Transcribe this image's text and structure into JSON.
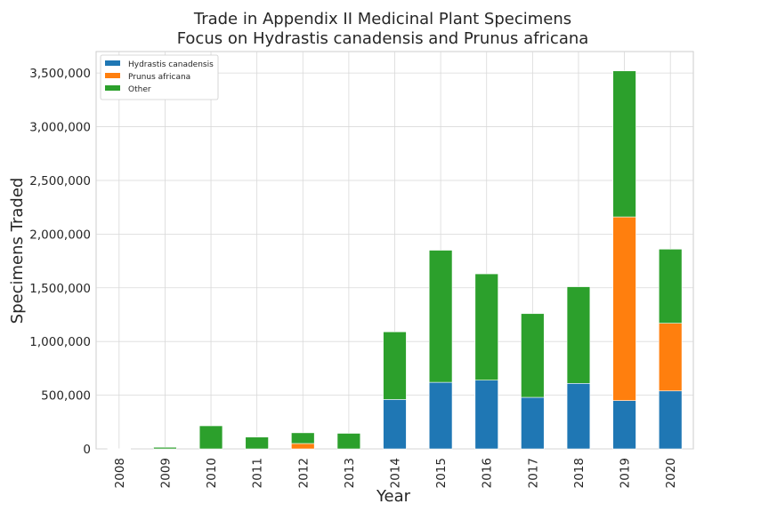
{
  "chart_data": {
    "type": "bar",
    "stacked": true,
    "title": "Trade in Appendix II Medicinal Plant Specimens",
    "subtitle": "Focus on Hydrastis canadensis and Prunus africana",
    "xlabel": "Year",
    "ylabel": "Specimens Traded",
    "ylim": [
      0,
      3700000
    ],
    "yticks": [
      0,
      500000,
      1000000,
      1500000,
      2000000,
      2500000,
      3000000,
      3500000
    ],
    "ytick_labels": [
      "0",
      "500,000",
      "1,000,000",
      "1,500,000",
      "2,000,000",
      "2,500,000",
      "3,000,000",
      "3,500,000"
    ],
    "grid": true,
    "legend_position": "top-left",
    "categories": [
      "2008",
      "2009",
      "2010",
      "2011",
      "2012",
      "2013",
      "2014",
      "2015",
      "2016",
      "2017",
      "2018",
      "2019",
      "2020"
    ],
    "series": [
      {
        "name": "Hydrastis canadensis",
        "color": "#1f77b4",
        "values": [
          0,
          0,
          0,
          0,
          0,
          0,
          460000,
          620000,
          640000,
          480000,
          610000,
          450000,
          540000
        ]
      },
      {
        "name": "Prunus africana",
        "color": "#ff7f0e",
        "values": [
          0,
          0,
          0,
          0,
          50000,
          0,
          0,
          0,
          0,
          0,
          0,
          1710000,
          630000
        ]
      },
      {
        "name": "Other",
        "color": "#2ca02c",
        "values": [
          2000,
          15000,
          215000,
          110000,
          100000,
          145000,
          630000,
          1230000,
          990000,
          780000,
          900000,
          1360000,
          690000
        ]
      }
    ]
  }
}
